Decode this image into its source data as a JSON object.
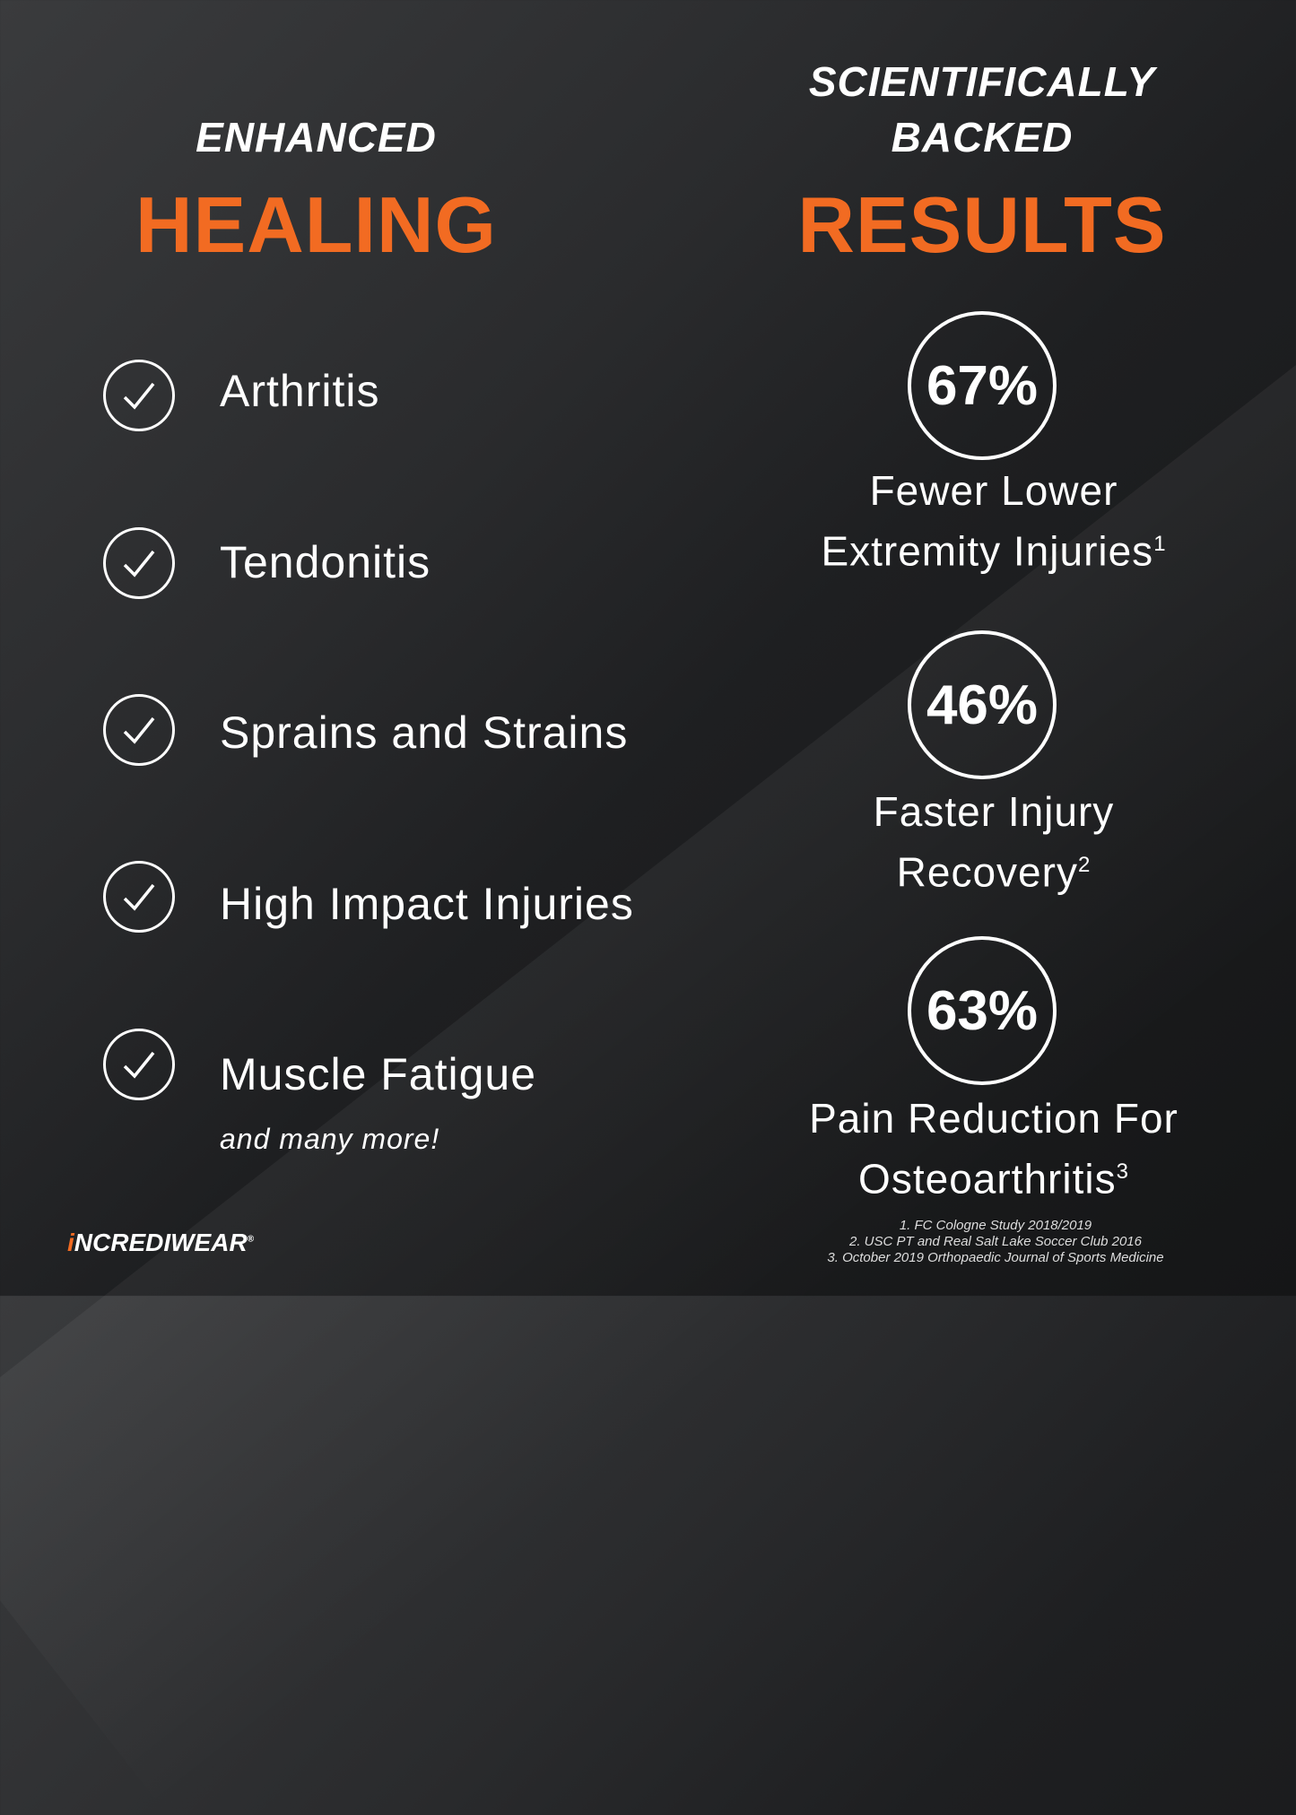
{
  "left": {
    "heading_small": "ENHANCED",
    "heading_big": "HEALING",
    "items": [
      "Arthritis",
      "Tendonitis",
      "Sprains and Strains",
      "High Impact Injuries",
      "Muscle Fatigue"
    ],
    "more": "and many more!"
  },
  "right": {
    "heading_small_1": "SCIENTIFICALLY",
    "heading_small_2": "BACKED",
    "heading_big": "RESULTS",
    "stats": [
      {
        "value": "67%",
        "line1": "Fewer Lower",
        "line2": "Extremity Injuries",
        "ref": "1"
      },
      {
        "value": "46%",
        "line1": "Faster Injury",
        "line2": "Recovery",
        "ref": "2"
      },
      {
        "value": "63%",
        "line1": "Pain Reduction For",
        "line2": "Osteoarthritis",
        "ref": "3"
      }
    ]
  },
  "footnotes": [
    "1. FC Cologne Study 2018/2019",
    "2. USC PT and Real Salt Lake Soccer Club 2016",
    "3. October 2019 Orthopaedic Journal of Sports Medicine"
  ],
  "logo": {
    "first": "i",
    "rest": "NCREDIWEAR",
    "mark": "®"
  },
  "colors": {
    "accent": "#f26b22",
    "text": "#ffffff",
    "background": "#1e1f21"
  }
}
